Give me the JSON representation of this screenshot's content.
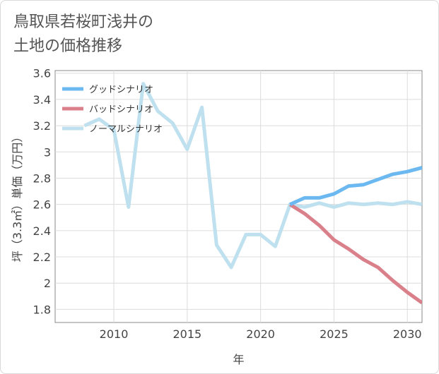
{
  "title": {
    "line1": "鳥取県若桜町浅井の",
    "line2": "土地の価格推移"
  },
  "colors": {
    "good": "#6cb8f0",
    "bad": "#d9808a",
    "normal": "#bfe0ee",
    "grid": "#dcdcdc",
    "axis": "#888888"
  },
  "chart_data": {
    "type": "line",
    "title": "鳥取県若桜町浅井の土地の価格推移",
    "xlabel": "年",
    "ylabel": "坪（3.3㎡）単価（万円）",
    "xlim": [
      2006,
      2031
    ],
    "ylim": [
      1.7,
      3.62
    ],
    "x_ticks": [
      2010,
      2015,
      2020,
      2025,
      2030
    ],
    "x_tick_labels": [
      "2010",
      "2015",
      "2020",
      "2025",
      "2030"
    ],
    "y_ticks": [
      1.8,
      2.0,
      2.2,
      2.4,
      2.6,
      2.8,
      3.0,
      3.2,
      3.4,
      3.6
    ],
    "y_tick_labels": [
      "1.8",
      "2",
      "2.2",
      "2.4",
      "2.6",
      "2.8",
      "3",
      "3.2",
      "3.4",
      "3.6"
    ],
    "legend_position": "top-left",
    "series": [
      {
        "name": "グッドシナリオ",
        "color": "#6cb8f0",
        "x": [
          2022,
          2023,
          2024,
          2025,
          2026,
          2027,
          2028,
          2029,
          2030,
          2031
        ],
        "y": [
          2.6,
          2.65,
          2.65,
          2.68,
          2.74,
          2.75,
          2.79,
          2.83,
          2.85,
          2.88
        ]
      },
      {
        "name": "バッドシナリオ",
        "color": "#d9808a",
        "x": [
          2022,
          2023,
          2024,
          2025,
          2026,
          2027,
          2028,
          2029,
          2030,
          2031
        ],
        "y": [
          2.6,
          2.53,
          2.44,
          2.33,
          2.26,
          2.18,
          2.12,
          2.02,
          1.93,
          1.85
        ]
      },
      {
        "name": "ノーマルシナリオ",
        "color": "#bfe0ee",
        "x": [
          2008,
          2009,
          2010,
          2011,
          2012,
          2013,
          2014,
          2015,
          2016,
          2017,
          2018,
          2019,
          2020,
          2021,
          2022,
          2023,
          2024,
          2025,
          2026,
          2027,
          2028,
          2029,
          2030,
          2031
        ],
        "y": [
          3.2,
          3.25,
          3.17,
          2.58,
          3.52,
          3.31,
          3.22,
          3.02,
          3.34,
          2.29,
          2.12,
          2.37,
          2.37,
          2.28,
          2.6,
          2.58,
          2.61,
          2.58,
          2.61,
          2.6,
          2.61,
          2.6,
          2.62,
          2.6
        ]
      }
    ]
  }
}
